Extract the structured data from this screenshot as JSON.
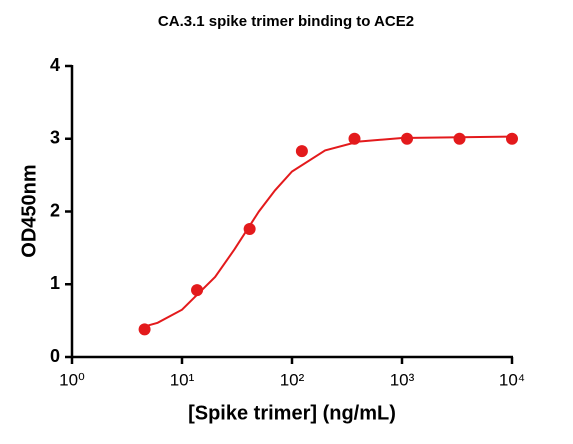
{
  "chart_data": {
    "type": "scatter",
    "title": "CA.3.1 spike trimer binding to ACE2",
    "x_label": "[Spike trimer] (ng/mL)",
    "y_label": "OD450nm",
    "xscale": "log",
    "xlim": [
      1,
      10000
    ],
    "ylim": [
      0,
      4
    ],
    "xticks": [
      {
        "value": 1,
        "label": "10⁰"
      },
      {
        "value": 10,
        "label": "10¹"
      },
      {
        "value": 100,
        "label": "10²"
      },
      {
        "value": 1000,
        "label": "10³"
      },
      {
        "value": 10000,
        "label": "10⁴"
      }
    ],
    "yticks": [
      0,
      1,
      2,
      3,
      4
    ],
    "series": [
      {
        "style": "markers",
        "color": "#e31a1c",
        "x": [
          4.57,
          13.7,
          41.2,
          123,
          370,
          1111,
          3333,
          10000
        ],
        "values": [
          0.38,
          0.92,
          1.76,
          2.83,
          3.0,
          3.0,
          3.0,
          3.0
        ]
      },
      {
        "style": "line",
        "color": "#e31a1c",
        "x": [
          4.57,
          6,
          10,
          20,
          30,
          50,
          70,
          100,
          200,
          400,
          1000,
          10000
        ],
        "values": [
          0.42,
          0.47,
          0.65,
          1.1,
          1.48,
          2.0,
          2.29,
          2.55,
          2.84,
          2.96,
          3.01,
          3.03
        ]
      }
    ]
  }
}
